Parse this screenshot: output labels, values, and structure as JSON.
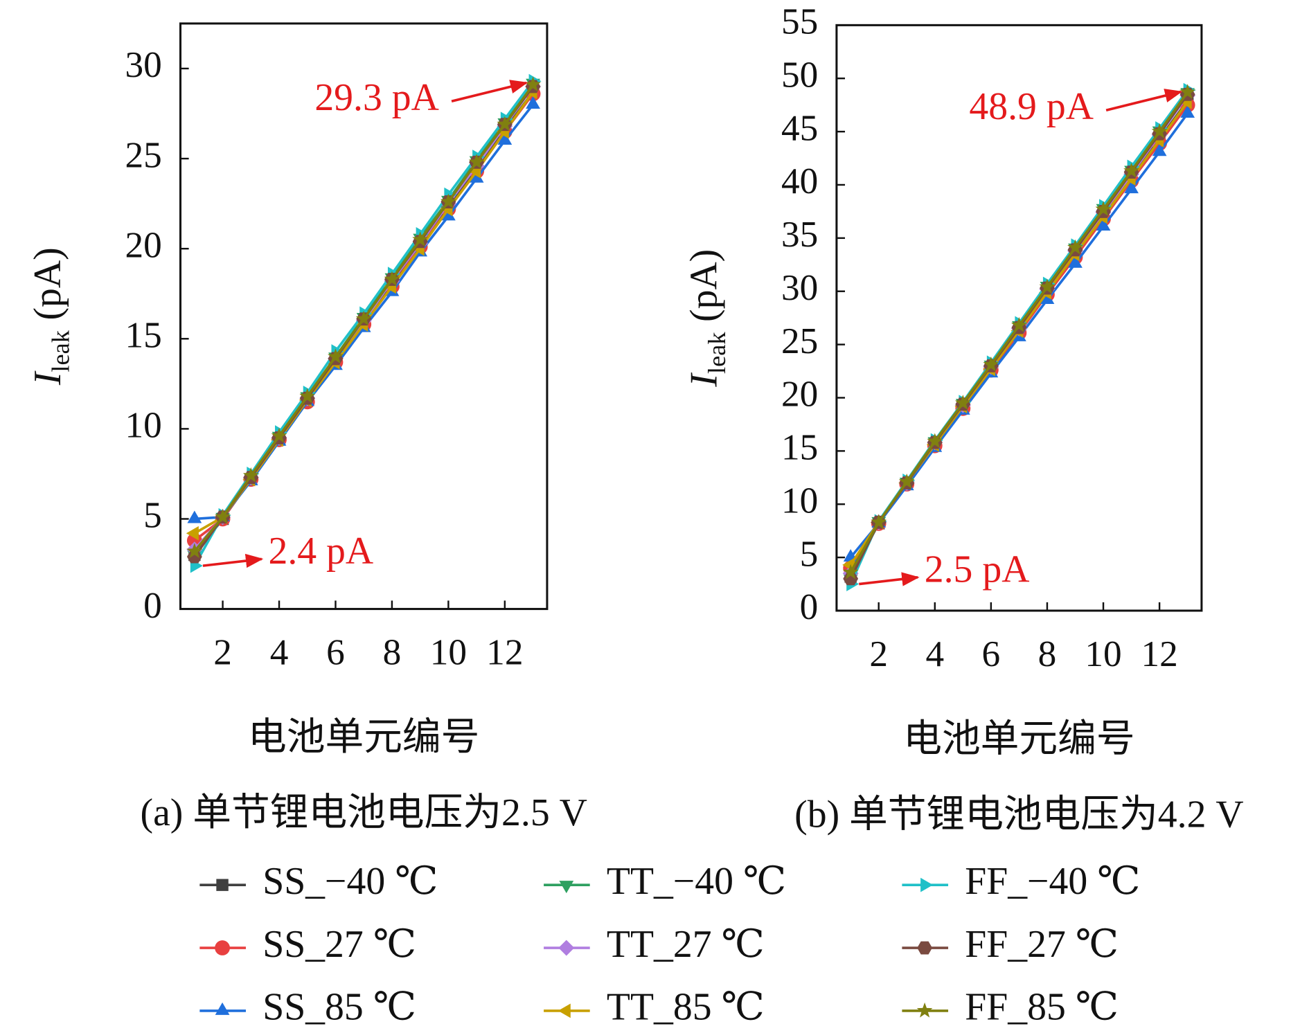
{
  "chart_data": [
    {
      "type": "line",
      "x_label": "电池单元编号",
      "y_label": "I",
      "y_label_sub": "leak",
      "y_label_unit": "(pA)",
      "caption": "(a) 单节锂电池电压为2.5 V",
      "legend": "bottom",
      "xlim": [
        0.5,
        13.5
      ],
      "xticks": [
        2,
        4,
        6,
        8,
        10,
        12
      ],
      "ylim": [
        0,
        32.5
      ],
      "yticks": [
        0,
        5,
        10,
        15,
        20,
        25,
        30
      ],
      "x": [
        1,
        2,
        3,
        4,
        5,
        6,
        7,
        8,
        9,
        10,
        11,
        12,
        13
      ],
      "annotations": [
        {
          "text": "29.3 pA",
          "x": 13,
          "y": 29.3
        },
        {
          "text": "2.4 pA",
          "x": 1,
          "y": 2.4
        }
      ],
      "series": [
        {
          "name": "SS_−40 ℃",
          "color": "#404040",
          "marker": "square",
          "values": [
            3.0,
            5.0,
            7.2,
            9.4,
            11.6,
            13.8,
            15.9,
            18.0,
            20.2,
            22.3,
            24.5,
            26.6,
            28.7
          ]
        },
        {
          "name": "SS_27 ℃",
          "color": "#e84040",
          "marker": "circle",
          "values": [
            3.8,
            5.0,
            7.2,
            9.4,
            11.5,
            13.7,
            15.8,
            17.9,
            20.1,
            22.2,
            24.3,
            26.5,
            28.6
          ]
        },
        {
          "name": "SS_85 ℃",
          "color": "#1f6fdc",
          "marker": "triangle-up",
          "values": [
            5.0,
            5.1,
            7.1,
            9.3,
            11.5,
            13.5,
            15.6,
            17.6,
            19.8,
            21.8,
            23.9,
            26.0,
            28.0
          ]
        },
        {
          "name": "TT_−40 ℃",
          "color": "#2ea060",
          "marker": "triangle-down",
          "values": [
            3.0,
            5.1,
            7.3,
            9.6,
            11.8,
            14.0,
            16.2,
            18.4,
            20.6,
            22.7,
            24.9,
            27.0,
            29.2
          ]
        },
        {
          "name": "TT_27 ℃",
          "color": "#b07ee0",
          "marker": "diamond",
          "values": [
            3.3,
            5.1,
            7.3,
            9.5,
            11.7,
            13.9,
            16.0,
            18.2,
            20.3,
            22.5,
            24.6,
            26.8,
            29.0
          ]
        },
        {
          "name": "TT_85 ℃",
          "color": "#c8a000",
          "marker": "triangle-left",
          "values": [
            4.2,
            5.1,
            7.2,
            9.4,
            11.6,
            13.7,
            15.8,
            17.9,
            20.0,
            22.2,
            24.3,
            26.5,
            28.7
          ]
        },
        {
          "name": "FF_−40 ℃",
          "color": "#20c0c8",
          "marker": "triangle-right",
          "values": [
            2.4,
            5.2,
            7.5,
            9.8,
            12.0,
            14.3,
            16.4,
            18.6,
            20.8,
            23.0,
            25.1,
            27.2,
            29.3
          ]
        },
        {
          "name": "FF_27 ℃",
          "color": "#7a4a40",
          "marker": "hexagon",
          "values": [
            2.9,
            5.1,
            7.3,
            9.5,
            11.7,
            13.9,
            16.1,
            18.3,
            20.4,
            22.6,
            24.8,
            26.9,
            29.0
          ]
        },
        {
          "name": "FF_85 ℃",
          "color": "#808010",
          "marker": "star",
          "values": [
            3.2,
            5.1,
            7.4,
            9.6,
            11.8,
            14.0,
            16.1,
            18.3,
            20.5,
            22.6,
            24.8,
            26.9,
            29.1
          ]
        }
      ]
    },
    {
      "type": "line",
      "x_label": "电池单元编号",
      "y_label": "I",
      "y_label_sub": "leak",
      "y_label_unit": "(pA)",
      "caption": "(b) 单节锂电池电压为4.2 V",
      "xlim": [
        0.5,
        13.5
      ],
      "xticks": [
        2,
        4,
        6,
        8,
        10,
        12
      ],
      "ylim": [
        0,
        55
      ],
      "yticks": [
        0,
        5,
        10,
        15,
        20,
        25,
        30,
        35,
        40,
        45,
        50,
        55
      ],
      "x": [
        1,
        2,
        3,
        4,
        5,
        6,
        7,
        8,
        9,
        10,
        11,
        12,
        13
      ],
      "annotations": [
        {
          "text": "48.9 pA",
          "x": 13,
          "y": 48.9
        },
        {
          "text": "2.5 pA",
          "x": 1,
          "y": 2.5
        }
      ],
      "series": [
        {
          "color": "#404040",
          "marker": "square",
          "values": [
            3.2,
            8.2,
            11.9,
            15.6,
            19.1,
            22.7,
            26.3,
            29.9,
            33.5,
            37.1,
            40.7,
            44.3,
            47.9
          ]
        },
        {
          "color": "#e84040",
          "marker": "circle",
          "values": [
            4.0,
            8.2,
            11.9,
            15.5,
            19.0,
            22.6,
            26.1,
            29.7,
            33.2,
            36.8,
            40.4,
            43.9,
            47.5
          ]
        },
        {
          "color": "#1f6fdc",
          "marker": "triangle-up",
          "values": [
            5.0,
            8.2,
            11.7,
            15.3,
            18.8,
            22.3,
            25.7,
            29.2,
            32.6,
            36.1,
            39.6,
            43.1,
            46.7
          ]
        },
        {
          "color": "#2ea060",
          "marker": "triangle-down",
          "values": [
            3.0,
            8.4,
            12.1,
            15.9,
            19.5,
            23.1,
            26.8,
            30.5,
            34.1,
            37.8,
            41.4,
            45.1,
            48.7
          ]
        },
        {
          "color": "#b07ee0",
          "marker": "diamond",
          "values": [
            3.5,
            8.3,
            12.0,
            15.8,
            19.3,
            22.9,
            26.5,
            30.2,
            33.8,
            37.4,
            41.0,
            44.7,
            48.4
          ]
        },
        {
          "color": "#c8a000",
          "marker": "triangle-left",
          "values": [
            4.3,
            8.3,
            12.0,
            15.6,
            19.2,
            22.7,
            26.3,
            29.9,
            33.5,
            37.0,
            40.6,
            44.2,
            47.8
          ]
        },
        {
          "color": "#20c0c8",
          "marker": "triangle-right",
          "values": [
            2.5,
            8.4,
            12.2,
            16.0,
            19.6,
            23.3,
            27.0,
            30.7,
            34.3,
            38.0,
            41.7,
            45.3,
            48.9
          ]
        },
        {
          "color": "#7a4a40",
          "marker": "hexagon",
          "values": [
            3.0,
            8.3,
            12.0,
            15.8,
            19.4,
            23.0,
            26.6,
            30.3,
            33.9,
            37.5,
            41.2,
            44.8,
            48.5
          ]
        },
        {
          "color": "#808010",
          "marker": "star",
          "values": [
            3.6,
            8.3,
            12.1,
            15.9,
            19.5,
            23.1,
            26.8,
            30.4,
            34.1,
            37.7,
            41.3,
            45.0,
            48.7
          ]
        }
      ]
    }
  ]
}
